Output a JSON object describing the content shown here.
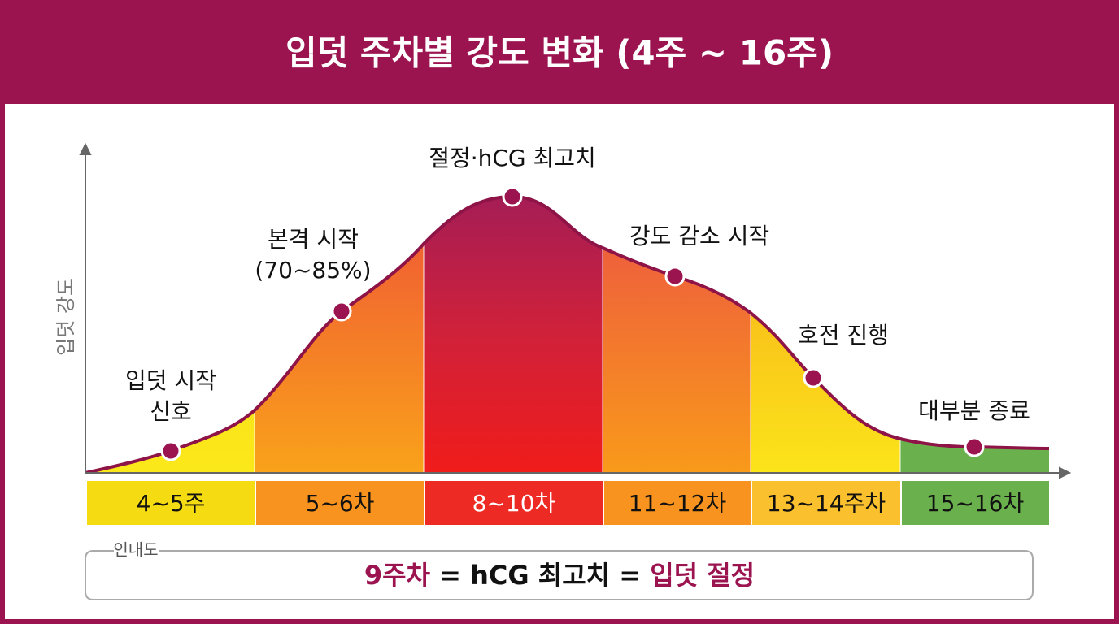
{
  "header": {
    "title": "입덧 주차별 강도 변화 (4주 ~ 16주)"
  },
  "y_axis_label": "입덧 강도",
  "annotations": [
    {
      "lines": [
        "입덧 시작",
        "신호"
      ]
    },
    {
      "lines": [
        "본격 시작",
        "(70~85%)"
      ]
    },
    {
      "lines": [
        "절정·hCG 최고치"
      ]
    },
    {
      "lines": [
        "강도 감소 시작"
      ]
    },
    {
      "lines": [
        "호전 진행"
      ]
    },
    {
      "lines": [
        "대부분 종료"
      ]
    }
  ],
  "periods": [
    "4~5주",
    "5~6차",
    "8~10차",
    "11~12차",
    "13~14주차",
    "15~16차"
  ],
  "legend": {
    "label": "인내도",
    "parts": [
      "9주차",
      " = hCG 최고치 = ",
      "입덧 절정"
    ]
  }
}
